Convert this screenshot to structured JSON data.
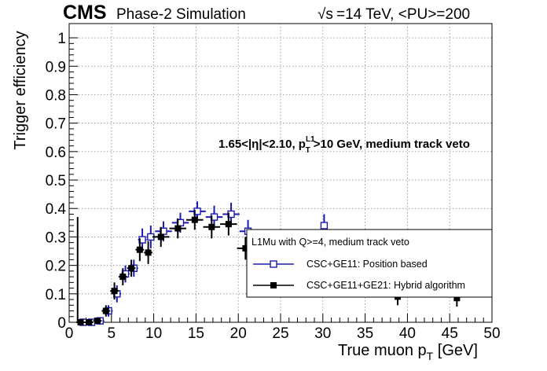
{
  "header": {
    "cms": "CMS",
    "phase": "Phase-2 Simulation",
    "energy": "=14 TeV, <PU>=200",
    "sqrt": "√s"
  },
  "annotation": {
    "prefix": "1.65<|η|<2.10, p",
    "sup": "L1",
    "sub": "T",
    "suffix": ">10 GeV, medium track veto"
  },
  "legend": {
    "title": "L1Mu with Q>=4, medium track veto",
    "entries": [
      "CSC+GE11: Position based",
      "CSC+GE11+GE21: Hybrid algorithm"
    ]
  },
  "chart_data": {
    "type": "scatter",
    "xlabel": "True muon p",
    "xlabel_sub": "T",
    "xlabel_unit": " [GeV]",
    "ylabel": "Trigger efficiency",
    "xlim": [
      0,
      50
    ],
    "ylim": [
      0,
      1.05
    ],
    "x_ticks": [
      0,
      5,
      10,
      15,
      20,
      25,
      30,
      35,
      40,
      45,
      50
    ],
    "y_ticks": [
      0,
      0.1,
      0.2,
      0.3,
      0.4,
      0.5,
      0.6,
      0.7,
      0.8,
      0.9,
      1
    ],
    "y_tick_labels": [
      "0",
      "0.1",
      "0.2",
      "0.3",
      "0.4",
      "0.5",
      "0.6",
      "0.7",
      "0.8",
      "0.9",
      "1"
    ],
    "grid": true,
    "legend_position": "bottom-right",
    "colors": {
      "position_based": "#1a1ab0",
      "hybrid": "#000000"
    },
    "series": [
      {
        "name": "CSC+GE11: Position based",
        "marker": "open-square",
        "x": [
          1.5,
          2.5,
          3.5,
          4.5,
          5.5,
          6.5,
          7.5,
          8.5,
          9.5,
          11,
          13,
          15,
          17,
          19,
          21,
          30
        ],
        "y": [
          0.0,
          0.0,
          0.005,
          0.04,
          0.1,
          0.17,
          0.19,
          0.29,
          0.3,
          0.32,
          0.35,
          0.39,
          0.37,
          0.38,
          0.32,
          0.34
        ],
        "xerr": [
          0.5,
          0.5,
          0.5,
          0.5,
          0.5,
          0.5,
          0.5,
          0.5,
          0.5,
          1,
          1,
          1,
          1,
          1,
          1,
          0
        ],
        "yerr": [
          0.0,
          0.0,
          0.01,
          0.02,
          0.03,
          0.03,
          0.03,
          0.04,
          0.04,
          0.035,
          0.035,
          0.035,
          0.04,
          0.04,
          0.04,
          0.04
        ]
      },
      {
        "name": "CSC+GE11+GE21: Hybrid algorithm",
        "marker": "filled-square",
        "x": [
          1.5,
          2.5,
          3.5,
          4.5,
          5.5,
          6.5,
          7.5,
          8.5,
          9.5,
          11,
          13,
          15,
          17,
          19,
          21,
          39,
          46
        ],
        "y": [
          0.0,
          0.0,
          0.005,
          0.04,
          0.11,
          0.16,
          0.19,
          0.255,
          0.245,
          0.3,
          0.33,
          0.36,
          0.335,
          0.345,
          0.26,
          0.09,
          0.085
        ],
        "xerr": [
          0.5,
          0.5,
          0.5,
          0.5,
          0.5,
          0.5,
          0.5,
          0.5,
          0.5,
          1,
          1,
          1,
          1,
          1,
          1,
          0,
          0
        ],
        "yerr": [
          0.0,
          0.0,
          0.01,
          0.02,
          0.03,
          0.03,
          0.03,
          0.04,
          0.04,
          0.035,
          0.035,
          0.035,
          0.04,
          0.04,
          0.04,
          0.03,
          0.03
        ]
      }
    ],
    "big_error_bar": {
      "x": 1.0,
      "y": 0.0,
      "up": 0.37
    }
  }
}
